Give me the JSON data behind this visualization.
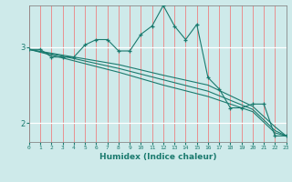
{
  "title": "",
  "xlabel": "Humidex (Indice chaleur)",
  "bg_color": "#ceeaea",
  "line_color": "#1a7a6e",
  "grid_h_color": "#ffffff",
  "grid_v_color": "#e89090",
  "xmin": 0,
  "xmax": 23,
  "ymin": 1.75,
  "ymax": 3.55,
  "yticks": [
    2,
    3
  ],
  "xticks": [
    0,
    1,
    2,
    3,
    4,
    5,
    6,
    7,
    8,
    9,
    10,
    11,
    12,
    13,
    14,
    15,
    16,
    17,
    18,
    19,
    20,
    21,
    22,
    23
  ],
  "series": [
    [
      0,
      2.97
    ],
    [
      1,
      2.97
    ],
    [
      2,
      2.87
    ],
    [
      3,
      2.87
    ],
    [
      4,
      2.87
    ],
    [
      5,
      3.03
    ],
    [
      6,
      3.1
    ],
    [
      7,
      3.1
    ],
    [
      8,
      2.95
    ],
    [
      9,
      2.95
    ],
    [
      10,
      3.17
    ],
    [
      11,
      3.28
    ],
    [
      12,
      3.55
    ],
    [
      13,
      3.28
    ],
    [
      14,
      3.1
    ],
    [
      15,
      3.3
    ],
    [
      16,
      2.6
    ],
    [
      17,
      2.45
    ],
    [
      18,
      2.2
    ],
    [
      19,
      2.2
    ],
    [
      20,
      2.25
    ],
    [
      21,
      2.25
    ],
    [
      22,
      1.83
    ],
    [
      23,
      1.83
    ]
  ],
  "line2": [
    [
      0,
      2.97
    ],
    [
      23,
      1.83
    ]
  ],
  "line3": [
    [
      0,
      2.97
    ],
    [
      23,
      1.83
    ]
  ],
  "line4": [
    [
      0,
      2.97
    ],
    [
      23,
      1.83
    ]
  ],
  "line2_pts": [
    [
      0,
      2.97
    ],
    [
      4,
      2.87
    ],
    [
      8,
      2.77
    ],
    [
      12,
      2.63
    ],
    [
      16,
      2.5
    ],
    [
      20,
      2.22
    ],
    [
      22,
      1.95
    ],
    [
      23,
      1.83
    ]
  ],
  "line3_pts": [
    [
      0,
      2.97
    ],
    [
      4,
      2.85
    ],
    [
      8,
      2.72
    ],
    [
      12,
      2.57
    ],
    [
      16,
      2.42
    ],
    [
      20,
      2.18
    ],
    [
      22,
      1.9
    ],
    [
      23,
      1.83
    ]
  ],
  "line4_pts": [
    [
      0,
      2.97
    ],
    [
      4,
      2.82
    ],
    [
      8,
      2.67
    ],
    [
      12,
      2.5
    ],
    [
      16,
      2.35
    ],
    [
      20,
      2.15
    ],
    [
      22,
      1.87
    ],
    [
      23,
      1.83
    ]
  ]
}
